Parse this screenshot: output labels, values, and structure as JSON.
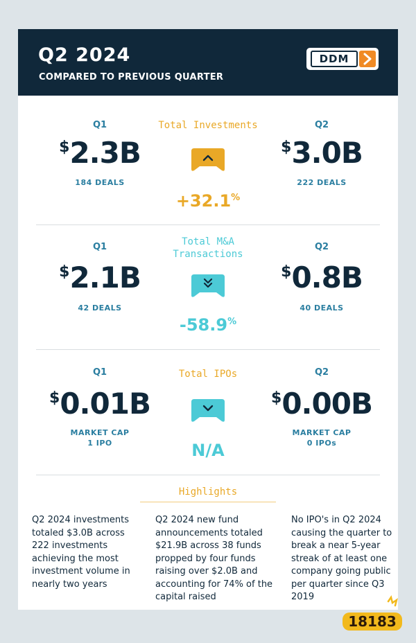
{
  "header": {
    "title": "Q2 2024",
    "subtitle": "COMPARED TO PREVIOUS QUARTER",
    "logo_text": "DDM"
  },
  "sections": [
    {
      "metric": "Total Investments",
      "q1_label": "Q1",
      "q2_label": "Q2",
      "q1_value": "2.3B",
      "q2_value": "3.0B",
      "q1_sub": "184 DEALS",
      "q2_sub": "222 DEALS",
      "change": "+32.1",
      "change_unit": "%",
      "direction_icon": "chevron-up-icon",
      "color": "#e9a827"
    },
    {
      "metric_line1": "Total M&A",
      "metric_line2": "Transactions",
      "q1_label": "Q1",
      "q2_label": "Q2",
      "q1_value": "2.1B",
      "q2_value": "0.8B",
      "q1_sub": "42 DEALS",
      "q2_sub": "40 DEALS",
      "change": "-58.9",
      "change_unit": "%",
      "direction_icon": "double-chevron-down-icon",
      "color": "#4ccad6"
    },
    {
      "metric": "Total IPOs",
      "q1_label": "Q1",
      "q2_label": "Q2",
      "q1_value": "0.01B",
      "q2_value": "0.00B",
      "q1_sub_line1": "MARKET CAP",
      "q1_sub_line2": "1 IPO",
      "q2_sub_line1": "MARKET CAP",
      "q2_sub_line2": "0 IPOs",
      "change": "N/A",
      "direction_icon": "chevron-down-icon",
      "color": "#4ccad6"
    }
  ],
  "currency_symbol": "$",
  "highlights": {
    "title": "Highlights",
    "items": [
      "Q2 2024 investments totaled $3.0B across 222 investments achieving the most investment volume in nearly two years",
      "Q2 2024 new fund announcements totaled $21.9B across 38 funds propped by four funds raising over $2.0B and accounting for 74% of the capital raised",
      "No IPO's in Q2 2024 causing the quarter to break a near 5-year streak of at least one company going public per quarter since Q3 2019"
    ]
  },
  "watermark": {
    "text": "18183"
  }
}
